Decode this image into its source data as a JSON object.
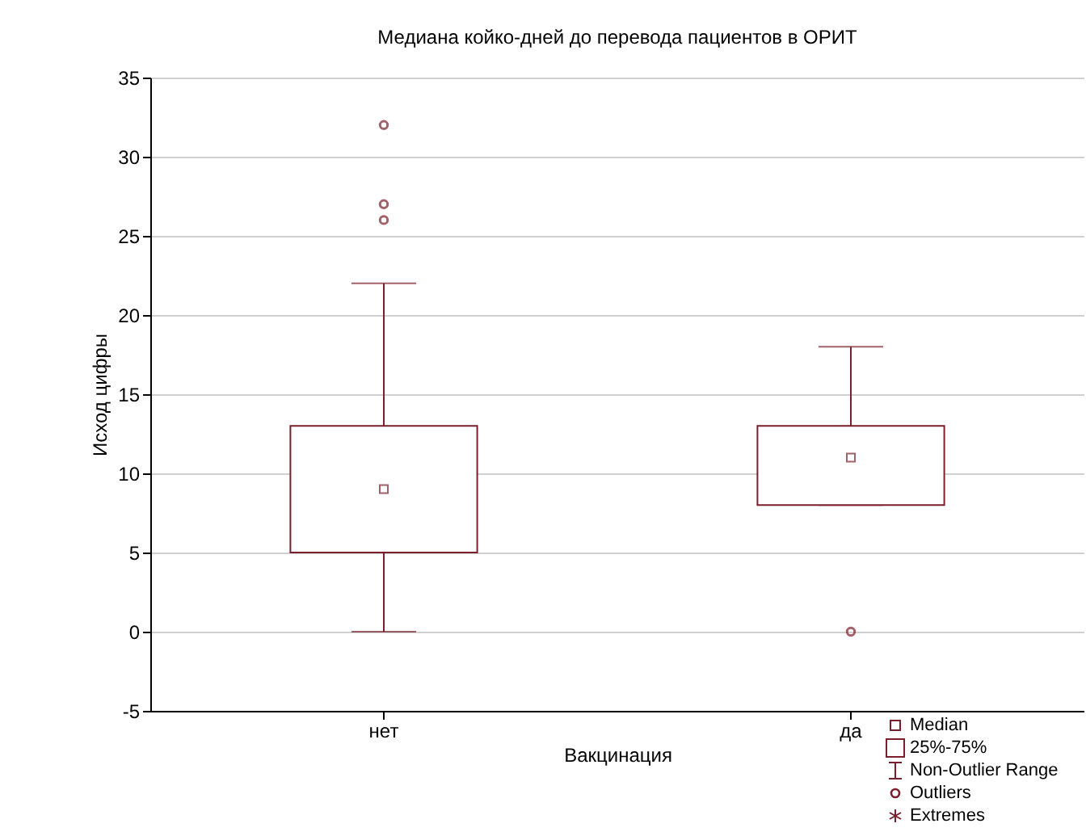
{
  "chart_data": {
    "type": "box",
    "title": "Медиана койко-дней до перевода пациентов в ОРИТ",
    "xlabel": "Вакцинация",
    "ylabel": "Исход цифры",
    "categories": [
      "нет",
      "да"
    ],
    "series": [
      {
        "color": "#7a1f2b",
        "boxes": [
          {
            "low": 0,
            "q1": 5,
            "median": 9,
            "q3": 13,
            "high": 22,
            "outliers": [
              26,
              27,
              32
            ]
          },
          {
            "low": 8,
            "q1": 8,
            "median": 11,
            "q3": 13,
            "high": 18,
            "outliers": [
              0
            ]
          }
        ]
      }
    ],
    "ylim": [
      -5,
      35
    ],
    "yticks": [
      -5,
      0,
      5,
      10,
      15,
      20,
      25,
      30,
      35
    ],
    "grid": "y",
    "annotations": [
      "Median",
      "25%-75%",
      "Non-Outlier Range",
      "Outliers",
      "Extremes"
    ]
  }
}
